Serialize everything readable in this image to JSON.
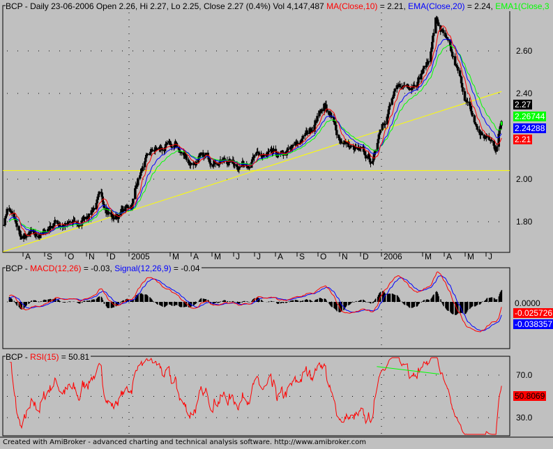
{
  "header": {
    "main_prefix": "BCP - Daily 23-06-2006 Open 2.26, Hi 2.27, Lo 2.25, Close 2.27 (0.4%) Vol 4,147,487 ",
    "ma_label": "MA(Close,10)",
    "ma_value": " = 2.21, ",
    "ema_label": "EMA(Close,20)",
    "ema_value": " = 2.24, ",
    "ema1_label": "EMA1(Close,3",
    "macd_prefix": "BCP - ",
    "macd_label": "MACD(12,26)",
    "macd_value": " = -0.03, ",
    "signal_label": "Signal(12,26,9)",
    "signal_value": " = -0.04",
    "rsi_prefix": "BCP - ",
    "rsi_label": "RSI(15)",
    "rsi_value": " = 50.81"
  },
  "footer": "Created with AmiBroker - advanced charting and technical analysis software. http://www.amibroker.com",
  "colors": {
    "background": "#c0c0c0",
    "ma": "#ff0000",
    "ema": "#0000ff",
    "ema1": "#00ff00",
    "trendline": "#ffff00",
    "candle": "#000000",
    "rsi": "#ff0000"
  },
  "chart_data": [
    {
      "type": "candlestick",
      "symbol": "BCP",
      "y_ticks": [
        "1.80",
        "2.00",
        "2.40",
        "2.60"
      ],
      "x_ticks": [
        "A",
        "S",
        "O",
        "N",
        "D",
        "2005",
        "M",
        "A",
        "M",
        "J",
        "J",
        "A",
        "S",
        "O",
        "N",
        "D",
        "2006",
        "M",
        "A",
        "M",
        "J"
      ],
      "x_tick_dates": [
        "2004-08-01",
        "2004-09-01",
        "2004-10-01",
        "2004-11-01",
        "2004-12-01",
        "2005-01-01",
        "2005-03-01",
        "2005-04-01",
        "2005-05-01",
        "2005-06-01",
        "2005-07-01",
        "2005-08-01",
        "2005-09-01",
        "2005-10-01",
        "2005-11-01",
        "2005-12-01",
        "2006-01-01",
        "2006-03-01",
        "2006-04-01",
        "2006-05-01",
        "2006-06-01"
      ],
      "ylim": [
        1.66,
        2.8
      ],
      "approx_close": [
        [
          "2004-07-05",
          1.8
        ],
        [
          "2004-07-10",
          1.88
        ],
        [
          "2004-07-30",
          1.72
        ],
        [
          "2004-08-30",
          1.74
        ],
        [
          "2004-09-15",
          1.8
        ],
        [
          "2004-10-20",
          1.78
        ],
        [
          "2004-11-20",
          1.91
        ],
        [
          "2004-12-10",
          1.82
        ],
        [
          "2005-01-05",
          1.88
        ],
        [
          "2005-01-15",
          2.02
        ],
        [
          "2005-02-05",
          2.13
        ],
        [
          "2005-03-10",
          2.15
        ],
        [
          "2005-03-30",
          2.08
        ],
        [
          "2005-05-01",
          2.1
        ],
        [
          "2005-06-10",
          2.07
        ],
        [
          "2005-06-30",
          2.1
        ],
        [
          "2005-08-10",
          2.1
        ],
        [
          "2005-08-30",
          2.15
        ],
        [
          "2005-09-20",
          2.23
        ],
        [
          "2005-10-10",
          2.36
        ],
        [
          "2005-10-30",
          2.2
        ],
        [
          "2005-11-20",
          2.14
        ],
        [
          "2005-12-20",
          2.08
        ],
        [
          "2005-12-30",
          2.25
        ],
        [
          "2006-01-20",
          2.4
        ],
        [
          "2006-02-20",
          2.47
        ],
        [
          "2006-03-10",
          2.55
        ],
        [
          "2006-03-20",
          2.75
        ],
        [
          "2006-03-30",
          2.68
        ],
        [
          "2006-04-20",
          2.5
        ],
        [
          "2006-05-05",
          2.35
        ],
        [
          "2006-05-20",
          2.22
        ],
        [
          "2006-06-05",
          2.18
        ],
        [
          "2006-06-15",
          2.15
        ],
        [
          "2006-06-23",
          2.27
        ]
      ],
      "last_values": {
        "close": "2.27",
        "ema1": "2.26744",
        "ema": "2.24288",
        "ma": "2.21"
      },
      "horizontal_line": 2.04,
      "trendline": [
        [
          "2004-07-03",
          1.66
        ],
        [
          "2006-06-23",
          2.41
        ]
      ]
    },
    {
      "type": "line",
      "name": "MACD",
      "series": [
        {
          "name": "MACD(12,26)",
          "last": "-0.025726"
        },
        {
          "name": "Signal(12,26,9)",
          "last": "-0.038357"
        }
      ],
      "y_ticks": [
        "0.0000"
      ],
      "histogram": true
    },
    {
      "type": "line",
      "name": "RSI",
      "series": [
        {
          "name": "RSI(15)",
          "last": "50.8069"
        }
      ],
      "y_ticks": [
        "70.0",
        "30.0"
      ],
      "ylim": [
        10,
        90
      ],
      "trendline": [
        [
          "2005-12-25",
          78
        ],
        [
          "2006-03-25",
          71
        ]
      ]
    }
  ]
}
